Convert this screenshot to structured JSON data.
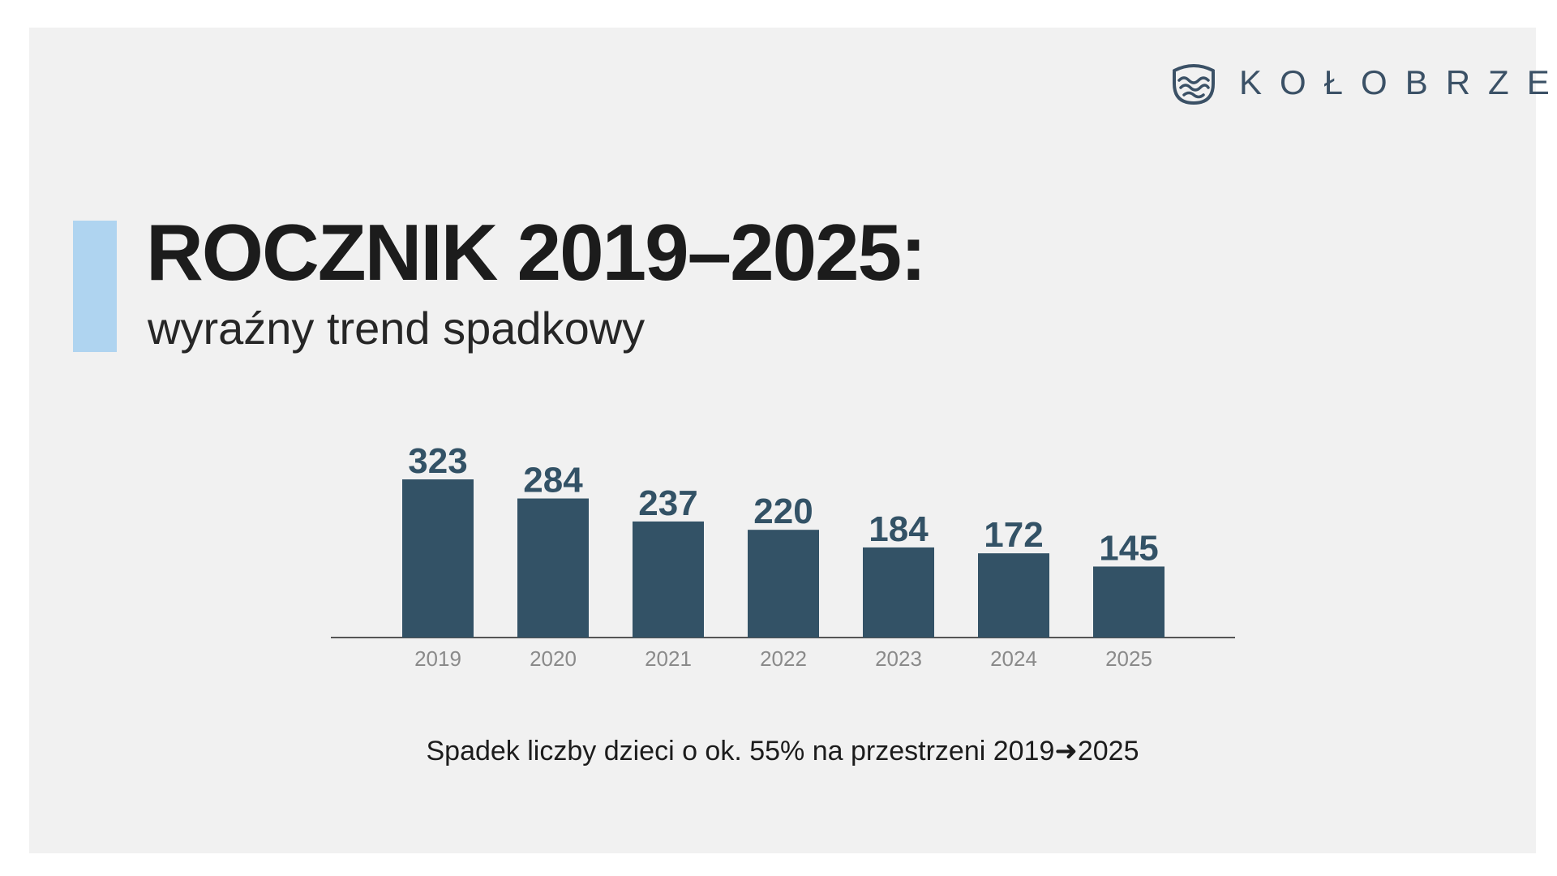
{
  "brand": {
    "name": "KOŁOBRZEG",
    "icon": "wave-logo-icon",
    "color": "#3b5166"
  },
  "heading": {
    "title": "ROCZNIK 2019–2025:",
    "subtitle": "wyraźny trend spadkowy",
    "accent_color": "#afd4f0"
  },
  "colors": {
    "bar": "#335266",
    "axis": "#555555",
    "tick": "#8a8a8a",
    "value_label": "#335266"
  },
  "chart_data": {
    "type": "bar",
    "title": "",
    "xlabel": "",
    "ylabel": "",
    "categories": [
      "2019",
      "2020",
      "2021",
      "2022",
      "2023",
      "2024",
      "2025"
    ],
    "values": [
      323,
      284,
      237,
      220,
      184,
      172,
      145
    ],
    "value_labels": [
      "323",
      "284",
      "237",
      "220",
      "184",
      "172",
      "145"
    ],
    "ylim": [
      0,
      323
    ],
    "grid": false,
    "legend": "none"
  },
  "footnote": "Spadek liczby dzieci o ok. 55% na przestrzeni 2019➜2025"
}
